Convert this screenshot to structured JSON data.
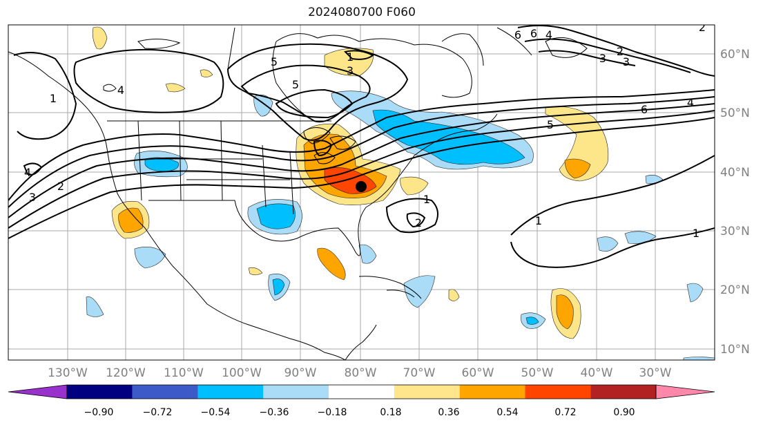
{
  "title": "2024080700 F060",
  "lon_labels": [
    "130°W",
    "120°W",
    "110°W",
    "100°W",
    "90°W",
    "80°W",
    "70°W",
    "60°W",
    "50°W",
    "40°W",
    "30°W"
  ],
  "lat_labels": [
    "60°N",
    "50°N",
    "40°N",
    "30°N",
    "20°N",
    "10°N"
  ],
  "contour_labels": [
    "1",
    "3",
    "5",
    "4",
    "6",
    "2",
    "3",
    "4",
    "5",
    "6",
    "1",
    "2",
    "3",
    "4",
    "5",
    "6",
    "4",
    "2",
    "3",
    "1",
    "2",
    "1",
    "1"
  ],
  "colorbar": {
    "colors": [
      "#9932cc",
      "#000080",
      "#3c5ac8",
      "#00bfff",
      "#aadcf8",
      "#ffffff",
      "#ffe68c",
      "#ffa500",
      "#ff4500",
      "#b22222",
      "#ff88aa"
    ],
    "tick_labels": [
      "−0.90",
      "−0.72",
      "−0.54",
      "−0.36",
      "−0.18",
      "0.18",
      "0.36",
      "0.54",
      "0.72",
      "0.90"
    ]
  },
  "colors": {
    "pos_light": "#fde68a",
    "pos_mid": "#ffa500",
    "pos_strong": "#ff4500",
    "neg_light": "#aadcf8",
    "neg_mid": "#00bfff",
    "contour": "#000000",
    "grid": "#aaaaaa",
    "axis_label": "#808080"
  },
  "marker": "black-circle"
}
